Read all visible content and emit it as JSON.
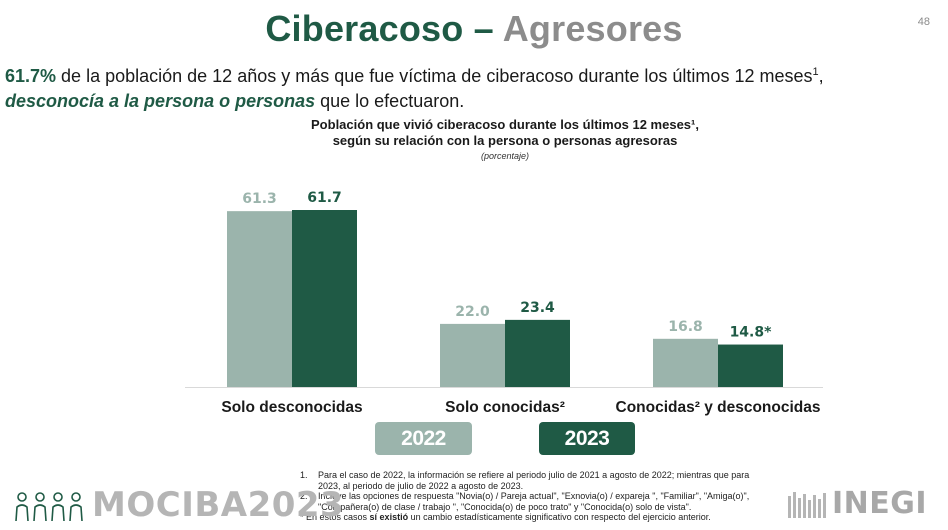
{
  "page": {
    "title_part1": "Ciberacoso –",
    "title_part2": "Agresores",
    "page_number": "48"
  },
  "headline": {
    "pct": "61.7%",
    "text1": " de la población de 12 años y más que fue víctima de ciberacoso durante los últimos 12 meses",
    "sup": "1",
    "comma": ",",
    "emph": "desconocía a la persona o personas",
    "text2": " que lo efectuaron."
  },
  "chart_data": {
    "type": "bar",
    "title_line1": "Población que vivió ciberacoso durante los últimos 12 meses¹,",
    "title_line2": "según su relación con la persona o personas agresoras",
    "subtitle": "(porcentaje)",
    "categories": [
      "Solo desconocidas",
      "Solo conocidas²",
      "Conocidas² y desconocidas"
    ],
    "series": [
      {
        "name": "2022",
        "values": [
          61.3,
          22.0,
          16.8
        ],
        "labels": [
          "61.3",
          "22.0",
          "16.8"
        ],
        "color": "#9bb4ac"
      },
      {
        "name": "2023",
        "values": [
          61.7,
          23.4,
          14.8
        ],
        "labels": [
          "61.7",
          "23.4",
          "14.8*"
        ],
        "color": "#1f5a45"
      }
    ],
    "ylim": [
      0,
      65
    ],
    "grid": false,
    "legend_position": "bottom"
  },
  "legend": {
    "label_2022": "2022",
    "label_2023": "2023"
  },
  "notes": {
    "n1_num": "1.",
    "n1_text": "Para el caso de 2022, la información se refiere al periodo julio de 2021 a agosto de 2022; mientras que para 2023, al periodo de julio de 2022 a agosto de 2023.",
    "n2_num": "2.",
    "n2_text": "Incluye las opciones de respuesta \"Novia(o) / Pareja actual\", \"Exnovia(o) / expareja \", \"Familiar\", \"Amiga(o)\", \"Compañera(o) de clase / trabajo \", \"Conocida(o) de poco trato\" y \"Conocida(o) solo de vista\".",
    "star_a": "* En estos casos ",
    "star_b": "sí existió",
    "star_c": " un cambio estadísticamente significativo con respecto del ejercicio anterior."
  },
  "footer": {
    "brand": "MOCIBA2023",
    "inegi": "INEGI",
    "colors": {
      "primary": "#1f5a45",
      "secondary": "#9bb4ac",
      "gray": "#b5b5b5"
    }
  }
}
